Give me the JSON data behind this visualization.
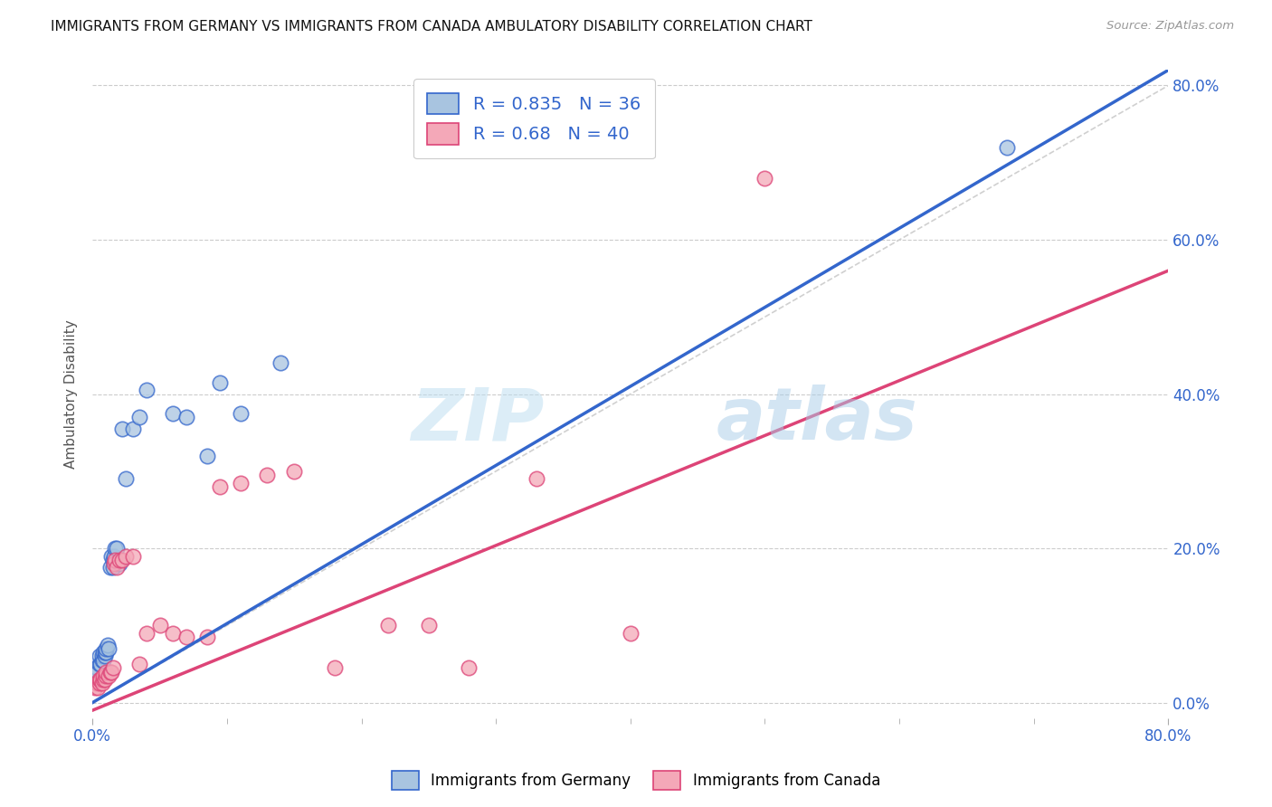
{
  "title": "IMMIGRANTS FROM GERMANY VS IMMIGRANTS FROM CANADA AMBULATORY DISABILITY CORRELATION CHART",
  "source": "Source: ZipAtlas.com",
  "ylabel": "Ambulatory Disability",
  "legend_germany": "Immigrants from Germany",
  "legend_canada": "Immigrants from Canada",
  "R_germany": 0.835,
  "N_germany": 36,
  "R_canada": 0.68,
  "N_canada": 40,
  "color_germany": "#A8C4E0",
  "color_canada": "#F4A8B8",
  "trendline_germany": "#3366CC",
  "trendline_canada": "#DD4477",
  "watermark_zip": "ZIP",
  "watermark_atlas": "atlas",
  "xmin": 0.0,
  "xmax": 0.8,
  "ymin": -0.02,
  "ymax": 0.82,
  "germany_x": [
    0.002,
    0.003,
    0.004,
    0.005,
    0.005,
    0.006,
    0.007,
    0.007,
    0.008,
    0.008,
    0.009,
    0.009,
    0.01,
    0.01,
    0.011,
    0.012,
    0.013,
    0.014,
    0.015,
    0.015,
    0.016,
    0.017,
    0.018,
    0.02,
    0.022,
    0.025,
    0.03,
    0.035,
    0.04,
    0.06,
    0.07,
    0.085,
    0.095,
    0.11,
    0.14,
    0.68
  ],
  "germany_y": [
    0.04,
    0.045,
    0.04,
    0.05,
    0.06,
    0.05,
    0.055,
    0.06,
    0.055,
    0.065,
    0.06,
    0.065,
    0.065,
    0.07,
    0.075,
    0.07,
    0.175,
    0.19,
    0.175,
    0.185,
    0.19,
    0.2,
    0.2,
    0.18,
    0.355,
    0.29,
    0.355,
    0.37,
    0.405,
    0.375,
    0.37,
    0.32,
    0.415,
    0.375,
    0.44,
    0.72
  ],
  "canada_x": [
    0.002,
    0.003,
    0.004,
    0.005,
    0.005,
    0.006,
    0.007,
    0.008,
    0.008,
    0.009,
    0.01,
    0.01,
    0.012,
    0.013,
    0.014,
    0.015,
    0.016,
    0.017,
    0.018,
    0.02,
    0.022,
    0.025,
    0.03,
    0.035,
    0.04,
    0.05,
    0.06,
    0.07,
    0.085,
    0.095,
    0.11,
    0.13,
    0.15,
    0.18,
    0.22,
    0.25,
    0.28,
    0.33,
    0.4,
    0.5
  ],
  "canada_y": [
    0.02,
    0.025,
    0.02,
    0.025,
    0.03,
    0.03,
    0.025,
    0.03,
    0.035,
    0.03,
    0.035,
    0.04,
    0.035,
    0.04,
    0.04,
    0.045,
    0.18,
    0.185,
    0.175,
    0.185,
    0.185,
    0.19,
    0.19,
    0.05,
    0.09,
    0.1,
    0.09,
    0.085,
    0.085,
    0.28,
    0.285,
    0.295,
    0.3,
    0.045,
    0.1,
    0.1,
    0.045,
    0.29,
    0.09,
    0.68
  ],
  "trendline_germany_x0": 0.0,
  "trendline_germany_y0": 0.0,
  "trendline_germany_x1": 0.8,
  "trendline_germany_y1": 0.82,
  "trendline_canada_x0": 0.0,
  "trendline_canada_y0": -0.01,
  "trendline_canada_x1": 0.8,
  "trendline_canada_y1": 0.56
}
